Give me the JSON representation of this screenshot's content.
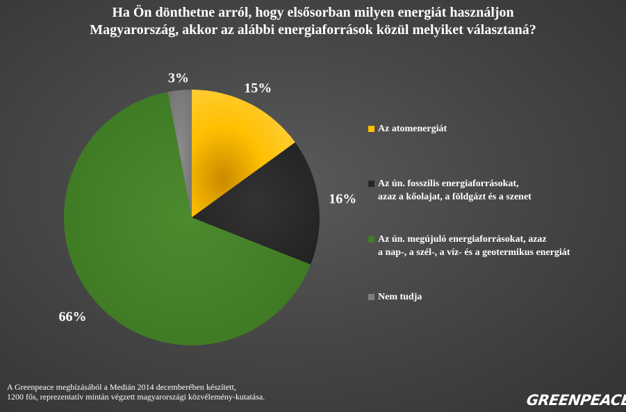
{
  "title_lines": [
    "Ha Ön dönthetne arról, hogy elsősorban milyen energiát használjon",
    "Magyarország, akkor az alábbi energiaforrások közül melyiket választaná?"
  ],
  "chart_data": {
    "type": "pie",
    "title": "Ha Ön dönthetne arról, hogy elsősorban milyen energiát használjon Magyarország, akkor az alábbi energiaforrások közül melyiket választaná?",
    "categories": [
      "Az atomenergiát",
      "Az ún. fosszilis energiaforrásokat, azaz a kőolajat, a földgázt és a szenet",
      "Az ún. megújuló energiaforrásokat, azaz a nap-, a szél-, a víz- és a geotermikus energiát",
      "Nem tudja"
    ],
    "values": [
      15,
      16,
      66,
      3
    ],
    "data_labels": [
      "15%",
      "16%",
      "66%",
      "3%"
    ],
    "colors": [
      "#ffc000",
      "#262626",
      "#3f7f24",
      "#7f7f7f"
    ],
    "start": "top, clockwise",
    "legend_position": "right"
  },
  "legend": [
    {
      "lines": [
        "Az atomenergiát"
      ],
      "color": "#ffc000"
    },
    {
      "lines": [
        "Az ún.  fosszilis energiaforrásokat,",
        "azaz a kőolajat, a földgázt és a szenet"
      ],
      "color": "#262626"
    },
    {
      "lines": [
        "Az ún. megújuló energiaforrásokat, azaz",
        "a nap-, a szél-, a víz- és a geotermikus energiát"
      ],
      "color": "#3f7f24"
    },
    {
      "lines": [
        "Nem tudja"
      ],
      "color": "#7f7f7f"
    }
  ],
  "footnote": [
    "A Greenpeace megbízásából a Medián 2014 decemberében készített,",
    "1200 fős, reprezentatív mintán végzett magyarországi közvélemény-kutatása."
  ],
  "logo_text": "GREENPEACE"
}
